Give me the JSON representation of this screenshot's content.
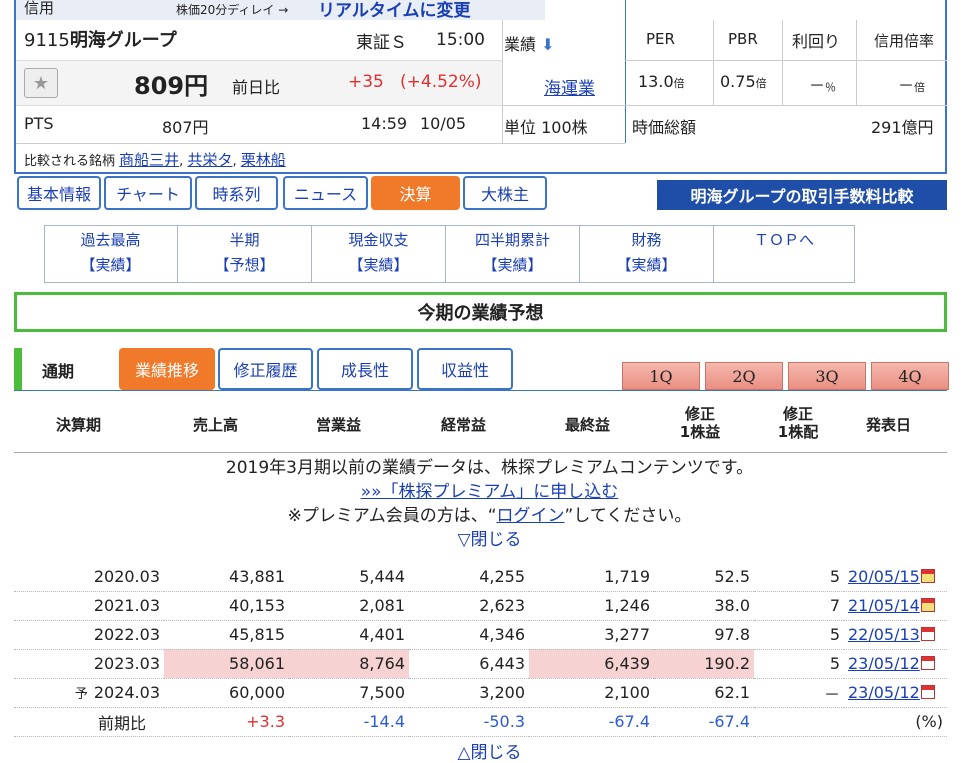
{
  "quote": {
    "credit_label": "信用",
    "delay_text": "株価20分ディレイ →",
    "realtime_link": "リアルタイムに変更",
    "code": "9115",
    "name": "明海グループ",
    "market": "東証Ｓ",
    "time": "15:00",
    "gyoseki_label": "業績",
    "price": "809円",
    "change_label": "前日比",
    "change": "+35",
    "change_pct": "(+4.52%)",
    "industry": "海運業",
    "pts_label": "PTS",
    "pts_price": "807円",
    "pts_time": "14:59",
    "pts_date": "10/05",
    "unit": "単位 100株",
    "compare_label": "比較される銘柄",
    "compare": [
      "商船三井",
      "共栄タ",
      "栗林船"
    ],
    "metrics": {
      "headers": [
        "PER",
        "PBR",
        "利回り",
        "信用倍率"
      ],
      "per": "13.0",
      "per_unit": "倍",
      "pbr": "0.75",
      "pbr_unit": "倍",
      "yield": "－",
      "yield_unit": "％",
      "margin": "－",
      "margin_unit": "倍",
      "mcap_label": "時価総額",
      "mcap": "291億円"
    }
  },
  "tabs": [
    "基本情報",
    "チャート",
    "時系列",
    "ニュース",
    "決算",
    "大株主"
  ],
  "fee_banner": "明海グループの取引手数料比較",
  "subnav": [
    {
      "l1": "過去最高",
      "l2": "【実績】"
    },
    {
      "l1": "半期",
      "l2": "【予想】"
    },
    {
      "l1": "現金収支",
      "l2": "【実績】"
    },
    {
      "l1": "四半期累計",
      "l2": "【実績】"
    },
    {
      "l1": "財務",
      "l2": "【実績】"
    },
    {
      "l1": "ＴＯＰへ",
      "l2": ""
    }
  ],
  "forecast_title": "今期の業績予想",
  "period_label": "通期",
  "gtabs": [
    "業績推移",
    "修正履歴",
    "成長性",
    "収益性"
  ],
  "quarters": [
    "1Q",
    "2Q",
    "3Q",
    "4Q"
  ],
  "headers": [
    "決算期",
    "売上高",
    "営業益",
    "経常益",
    "最終益",
    "修正1株益",
    "修正1株配",
    "発表日"
  ],
  "premium": {
    "line1": "2019年3月期以前の業績データは、株探プレミアムコンテンツです。",
    "link": "»»「株探プレミアム」に申し込む",
    "line3a": "※プレミアム会員の方は、“",
    "login": "ログイン",
    "line3b": "”してください。",
    "close": "▽閉じる",
    "close2": "△閉じる"
  },
  "rows": [
    {
      "prefix": "",
      "period": "2020.03",
      "sales": "43,881",
      "op": "5,444",
      "ord": "4,255",
      "net": "1,719",
      "eps": "52.5",
      "div": "5",
      "date": "20/05/15"
    },
    {
      "prefix": "",
      "period": "2021.03",
      "sales": "40,153",
      "op": "2,081",
      "ord": "2,623",
      "net": "1,246",
      "eps": "38.0",
      "div": "7",
      "date": "21/05/14"
    },
    {
      "prefix": "",
      "period": "2022.03",
      "sales": "45,815",
      "op": "4,401",
      "ord": "4,346",
      "net": "3,277",
      "eps": "97.8",
      "div": "5",
      "date": "22/05/13"
    },
    {
      "prefix": "",
      "period": "2023.03",
      "sales": "58,061",
      "op": "8,764",
      "ord": "6,443",
      "net": "6,439",
      "eps": "190.2",
      "div": "5",
      "date": "23/05/12"
    },
    {
      "prefix": "予",
      "period": "2024.03",
      "sales": "60,000",
      "op": "7,500",
      "ord": "3,200",
      "net": "2,100",
      "eps": "62.1",
      "div": "－",
      "date": "23/05/12"
    }
  ],
  "yoy": {
    "label": "前期比",
    "sales": "+3.3",
    "op": "-14.4",
    "ord": "-50.3",
    "net": "-67.4",
    "eps": "-67.4",
    "unit": "(%)"
  }
}
